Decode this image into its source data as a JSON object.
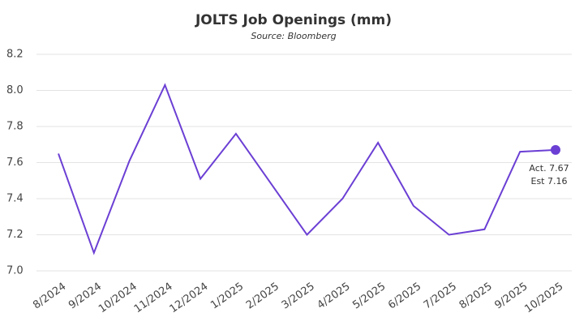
{
  "chart_data": {
    "type": "line",
    "title": "JOLTS Job Openings (mm)",
    "subtitle": "Source: Bloomberg",
    "categories": [
      "8/2024",
      "9/2024",
      "10/2024",
      "11/2024",
      "12/2024",
      "1/2025",
      "2/2025",
      "3/2025",
      "4/2025",
      "5/2025",
      "6/2025",
      "7/2025",
      "8/2025",
      "9/2025",
      "10/2025"
    ],
    "series": [
      {
        "name": "JOLTS Job Openings",
        "color": "#6b3fd4",
        "values": [
          7.65,
          7.1,
          7.61,
          8.03,
          7.51,
          7.76,
          7.48,
          7.2,
          7.4,
          7.71,
          7.36,
          7.2,
          7.23,
          7.66,
          7.67
        ]
      }
    ],
    "annotations": [
      "Act. 7.67",
      "Est 7.16"
    ],
    "ylim": [
      7.0,
      8.2
    ],
    "yticks": [
      {
        "value": 7.0,
        "label": "7.0"
      },
      7.2,
      7.4,
      7.6,
      7.8,
      {
        "value": 8.0,
        "label": "8.0"
      },
      8.2
    ],
    "grid": true
  }
}
